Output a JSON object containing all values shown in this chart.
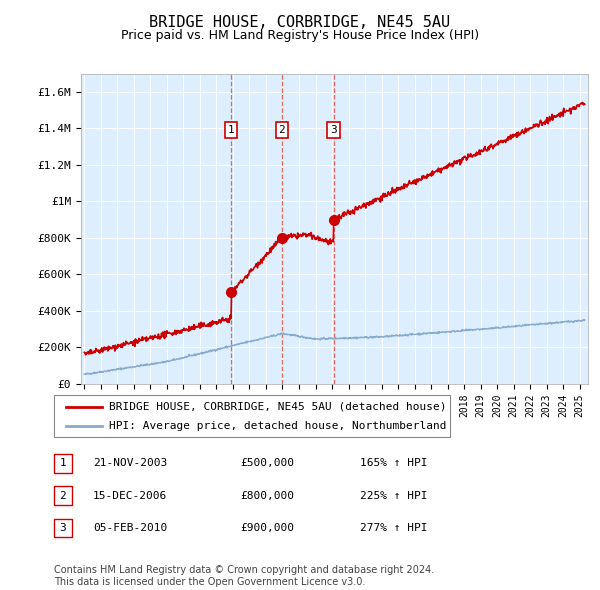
{
  "title": "BRIDGE HOUSE, CORBRIDGE, NE45 5AU",
  "subtitle": "Price paid vs. HM Land Registry's House Price Index (HPI)",
  "ylabel_ticks": [
    "£0",
    "£200K",
    "£400K",
    "£600K",
    "£800K",
    "£1M",
    "£1.2M",
    "£1.4M",
    "£1.6M"
  ],
  "ytick_values": [
    0,
    200000,
    400000,
    600000,
    800000,
    1000000,
    1200000,
    1400000,
    1600000
  ],
  "ylim": [
    0,
    1700000
  ],
  "xmin": 1994.8,
  "xmax": 2025.5,
  "plot_bg": "#ddeeff",
  "red_line_color": "#cc0000",
  "blue_line_color": "#88aacc",
  "marker_box_color": "#cc0000",
  "vline_color": "#dd4444",
  "sales": [
    {
      "date": 2003.89,
      "price": 500000,
      "label": "1"
    },
    {
      "date": 2006.96,
      "price": 800000,
      "label": "2"
    },
    {
      "date": 2010.09,
      "price": 900000,
      "label": "3"
    }
  ],
  "legend_entries": [
    "BRIDGE HOUSE, CORBRIDGE, NE45 5AU (detached house)",
    "HPI: Average price, detached house, Northumberland"
  ],
  "table_data": [
    [
      "1",
      "21-NOV-2003",
      "£500,000",
      "165% ↑ HPI"
    ],
    [
      "2",
      "15-DEC-2006",
      "£800,000",
      "225% ↑ HPI"
    ],
    [
      "3",
      "05-FEB-2010",
      "£900,000",
      "277% ↑ HPI"
    ]
  ],
  "footer": "Contains HM Land Registry data © Crown copyright and database right 2024.\nThis data is licensed under the Open Government Licence v3.0."
}
